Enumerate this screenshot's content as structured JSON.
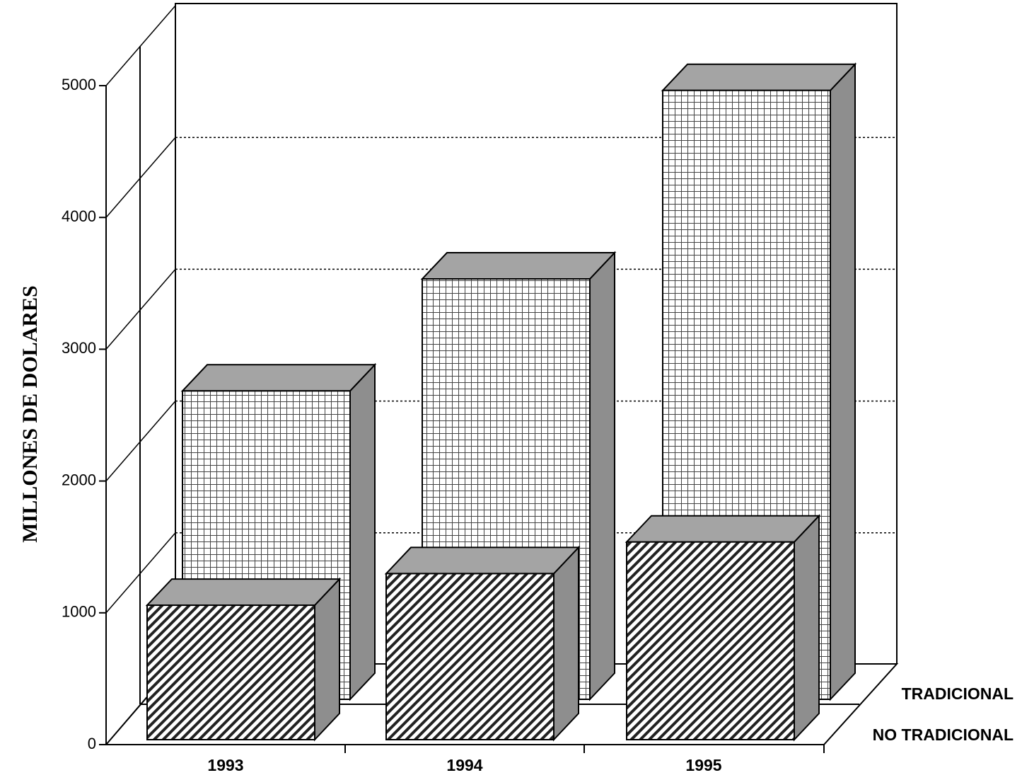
{
  "chart_data": {
    "type": "bar3d",
    "y_label": "MILLONES DE DOLARES",
    "categories": [
      "1993",
      "1994",
      "1995"
    ],
    "series": [
      {
        "name": "NO TRADICIONAL",
        "color": "#222222",
        "pattern": "hatch",
        "values": [
          1020,
          1260,
          1500
        ]
      },
      {
        "name": "TRADICIONAL",
        "color": "#444444",
        "pattern": "grid",
        "values": [
          2340,
          3190,
          4620
        ]
      }
    ],
    "ylim": [
      0,
      5000
    ],
    "yticks": [
      0,
      1000,
      2000,
      3000,
      4000,
      5000
    ],
    "grid": true
  }
}
